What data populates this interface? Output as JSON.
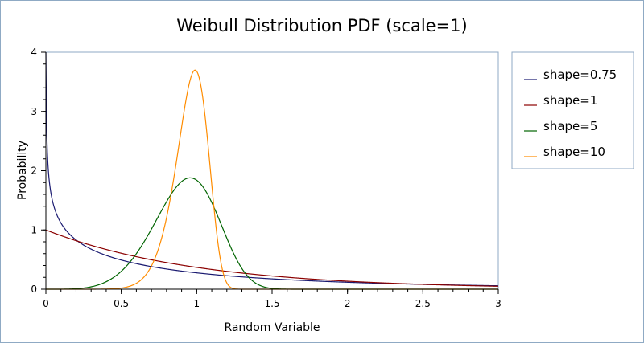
{
  "chart_data": {
    "type": "line",
    "title": "Weibull Distribution PDF (scale=1)",
    "xlabel": "Random Variable",
    "ylabel": "Probability",
    "xlim": [
      0,
      3
    ],
    "ylim": [
      0,
      4
    ],
    "x_ticks": [
      "0",
      "0.5",
      "1",
      "1.5",
      "2",
      "2.5",
      "3"
    ],
    "y_ticks": [
      "0",
      "1",
      "2",
      "3",
      "4"
    ],
    "legend_position": "right",
    "series": [
      {
        "name": "shape=0.75",
        "color": "#191970",
        "shape": 0.75,
        "scale": 1
      },
      {
        "name": "shape=1",
        "color": "#8b0000",
        "shape": 1,
        "scale": 1
      },
      {
        "name": "shape=5",
        "color": "#006400",
        "shape": 5,
        "scale": 1
      },
      {
        "name": "shape=10",
        "color": "#ff8c00",
        "shape": 10,
        "scale": 1
      }
    ]
  }
}
